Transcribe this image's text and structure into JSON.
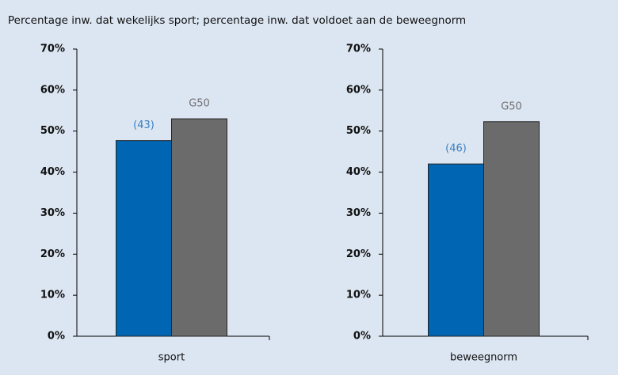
{
  "title": "Percentage inw. dat wekelijks sport; percentage inw. dat voldoet aan de beweegnorm",
  "chart_data": [
    {
      "type": "bar",
      "categories": [
        "sport"
      ],
      "series": [
        {
          "label": "(43)",
          "color": "#0066b3",
          "label_color": "#3a7fc1",
          "values": [
            47.7
          ]
        },
        {
          "label": "G50",
          "color": "#6b6b6b",
          "label_color": "#707070",
          "values": [
            53
          ]
        }
      ],
      "ylim": [
        0,
        70
      ],
      "yticks": [
        {
          "value": 0,
          "label": "0%"
        },
        {
          "value": 10,
          "label": "10%"
        },
        {
          "value": 20,
          "label": "20%"
        },
        {
          "value": 30,
          "label": "30%"
        },
        {
          "value": 40,
          "label": "40%"
        },
        {
          "value": 50,
          "label": "50%"
        },
        {
          "value": 60,
          "label": "60%"
        },
        {
          "value": 70,
          "label": "70%"
        }
      ]
    },
    {
      "type": "bar",
      "categories": [
        "beweegnorm"
      ],
      "series": [
        {
          "label": "(46)",
          "color": "#0066b3",
          "label_color": "#3a7fc1",
          "values": [
            42
          ]
        },
        {
          "label": "G50",
          "color": "#6b6b6b",
          "label_color": "#707070",
          "values": [
            52.3
          ]
        }
      ],
      "ylim": [
        0,
        70
      ],
      "yticks": [
        {
          "value": 0,
          "label": "0%"
        },
        {
          "value": 10,
          "label": "10%"
        },
        {
          "value": 20,
          "label": "20%"
        },
        {
          "value": 30,
          "label": "30%"
        },
        {
          "value": 40,
          "label": "40%"
        },
        {
          "value": 50,
          "label": "50%"
        },
        {
          "value": 60,
          "label": "60%"
        },
        {
          "value": 70,
          "label": "70%"
        }
      ]
    }
  ]
}
